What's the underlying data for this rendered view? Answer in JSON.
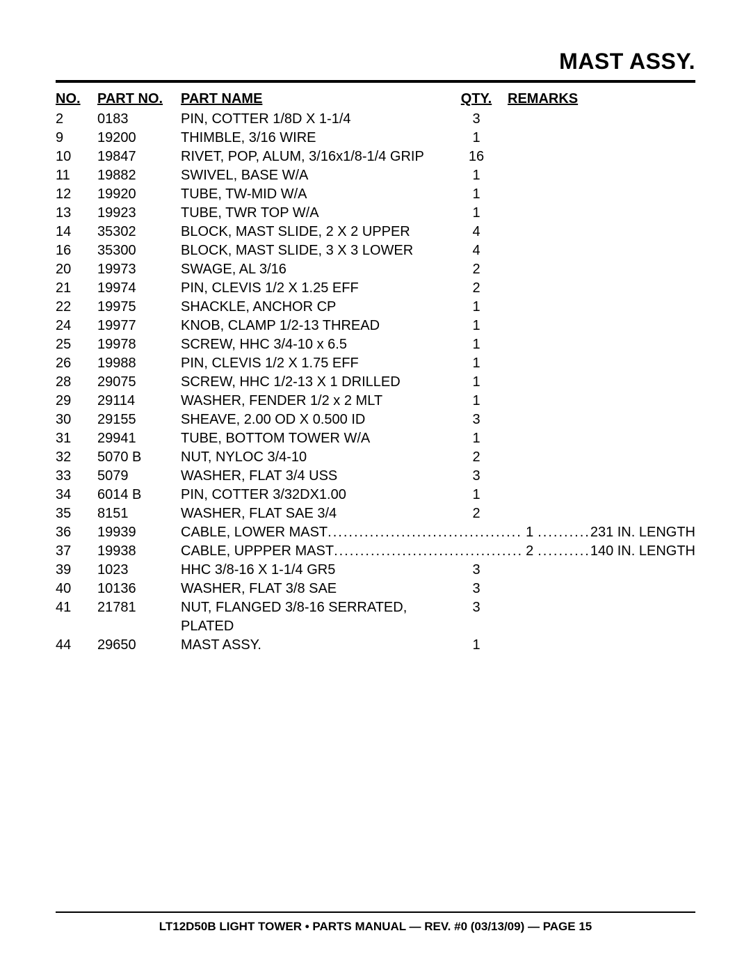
{
  "title": "MAST ASSY.",
  "columns": {
    "no": "NO.",
    "partno": "PART NO.",
    "name": "PART NAME",
    "qty": "QTY.",
    "remarks": "REMARKS"
  },
  "rows": [
    {
      "no": "2",
      "partno": "0183",
      "name": "PIN, COTTER 1/8D X 1-1/4",
      "qty": "3",
      "remarks": ""
    },
    {
      "no": "9",
      "partno": "19200",
      "name": "THIMBLE, 3/16 WIRE",
      "qty": "1",
      "remarks": ""
    },
    {
      "no": "10",
      "partno": "19847",
      "name": "RIVET, POP, ALUM, 3/16x1/8-1/4 GRIP",
      "qty": "16",
      "remarks": ""
    },
    {
      "no": "11",
      "partno": "19882",
      "name": "SWIVEL, BASE W/A",
      "qty": "1",
      "remarks": ""
    },
    {
      "no": "12",
      "partno": "19920",
      "name": "TUBE, TW-MID W/A",
      "qty": "1",
      "remarks": ""
    },
    {
      "no": "13",
      "partno": "19923",
      "name": "TUBE, TWR TOP W/A",
      "qty": "1",
      "remarks": ""
    },
    {
      "no": "14",
      "partno": "35302",
      "name": "BLOCK, MAST SLIDE, 2 X 2 UPPER",
      "qty": "4",
      "remarks": ""
    },
    {
      "no": "16",
      "partno": "35300",
      "name": "BLOCK, MAST SLIDE, 3 X 3 LOWER",
      "qty": "4",
      "remarks": ""
    },
    {
      "no": "20",
      "partno": "19973",
      "name": "SWAGE,  AL 3/16",
      "qty": "2",
      "remarks": ""
    },
    {
      "no": "21",
      "partno": "19974",
      "name": "PIN, CLEVIS 1/2 X 1.25 EFF",
      "qty": "2",
      "remarks": ""
    },
    {
      "no": "22",
      "partno": "19975",
      "name": "SHACKLE, ANCHOR CP",
      "qty": "1",
      "remarks": ""
    },
    {
      "no": "24",
      "partno": "19977",
      "name": "KNOB, CLAMP 1/2-13 THREAD",
      "qty": "1",
      "remarks": ""
    },
    {
      "no": "25",
      "partno": "19978",
      "name": "SCREW, HHC 3/4-10 x 6.5",
      "qty": "1",
      "remarks": ""
    },
    {
      "no": "26",
      "partno": "19988",
      "name": "PIN, CLEVIS 1/2 X 1.75 EFF",
      "qty": "1",
      "remarks": ""
    },
    {
      "no": "28",
      "partno": "29075",
      "name": "SCREW, HHC 1/2-13 X 1 DRILLED",
      "qty": "1",
      "remarks": ""
    },
    {
      "no": "29",
      "partno": "29114",
      "name": "WASHER, FENDER 1/2 x 2  MLT",
      "qty": "1",
      "remarks": ""
    },
    {
      "no": "30",
      "partno": "29155",
      "name": "SHEAVE, 2.00 OD X 0.500 ID",
      "qty": "3",
      "remarks": ""
    },
    {
      "no": "31",
      "partno": "29941",
      "name": "TUBE, BOTTOM TOWER W/A",
      "qty": "1",
      "remarks": ""
    },
    {
      "no": "32",
      "partno": "5070 B",
      "name": "NUT, NYLOC 3/4-10",
      "qty": "2",
      "remarks": ""
    },
    {
      "no": "33",
      "partno": "5079",
      "name": "WASHER, FLAT 3/4 USS",
      "qty": "3",
      "remarks": ""
    },
    {
      "no": "34",
      "partno": "6014 B",
      "name": "PIN, COTTER 3/32DX1.00",
      "qty": "1",
      "remarks": ""
    },
    {
      "no": "35",
      "partno": "8151",
      "name": "WASHER, FLAT SAE 3/4",
      "qty": "2",
      "remarks": ""
    },
    {
      "no": "36",
      "partno": "19939",
      "name": "CABLE, LOWER MAST",
      "qty": "1",
      "remarks": "231 IN. LENGTH",
      "dotted": true
    },
    {
      "no": "37",
      "partno": "19938",
      "name": "CABLE, UPPPER MAST",
      "qty": "2",
      "remarks": "140 IN. LENGTH",
      "dotted": true
    },
    {
      "no": "39",
      "partno": "1023",
      "name": "HHC 3/8-16 X 1-1/4 GR5",
      "qty": "3",
      "remarks": ""
    },
    {
      "no": "40",
      "partno": "10136",
      "name": "WASHER, FLAT 3/8 SAE",
      "qty": "3",
      "remarks": ""
    },
    {
      "no": "41",
      "partno": "21781",
      "name": "NUT, FLANGED 3/8-16 SERRATED, PLATED",
      "qty": "3",
      "remarks": ""
    },
    {
      "no": "44",
      "partno": "29650",
      "name": "MAST ASSY.",
      "qty": "1",
      "remarks": ""
    }
  ],
  "footer": "LT12D50B LIGHT TOWER • PARTS MANUAL — REV. #0 (03/13/09) — PAGE 15",
  "styling": {
    "background_color": "#ffffff",
    "text_color": "#000000",
    "title_fontsize": 32,
    "body_fontsize": 20,
    "footer_fontsize": 17,
    "title_rule_width": 4,
    "footer_rule_width": 2,
    "column_widths": {
      "no": 60,
      "partno": 120,
      "name": 390,
      "qty": 70
    }
  }
}
